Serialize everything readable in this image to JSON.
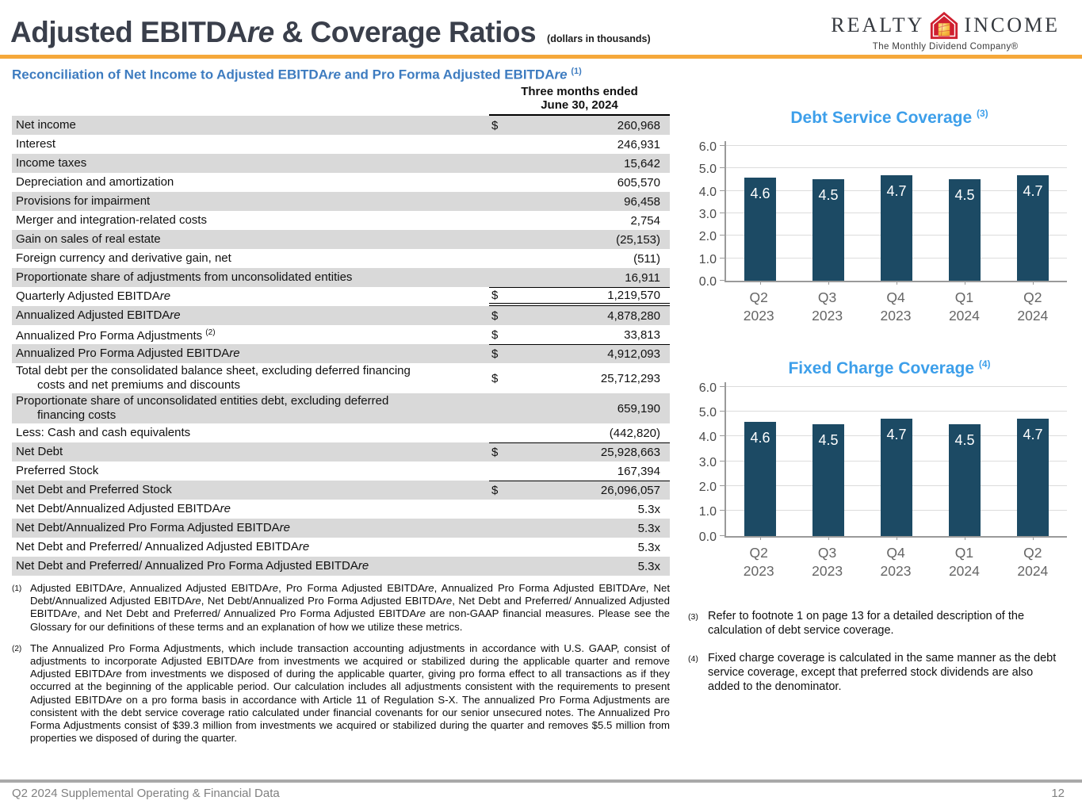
{
  "colors": {
    "accent_orange": "#f5a83a",
    "subtitle_blue": "#3e7cc0",
    "chart_title_blue": "#3d9fea",
    "bar_fill": "#1c4a64",
    "bar_value_label": "#ffffff",
    "row_shade": "#d9d9d9",
    "title_dark": "#3a3f4b",
    "footer_gray": "#808080",
    "logo_red": "#cf2030",
    "logo_window_yellow": "#f6c54a"
  },
  "header": {
    "title": "Adjusted EBITDAre & Coverage Ratios",
    "dollars_note": "(dollars in thousands)",
    "logo": {
      "left": "REALTY",
      "right": "INCOME",
      "tagline": "The Monthly Dividend Company®",
      "icon": "house-icon"
    }
  },
  "table": {
    "subtitle": "Reconciliation of Net Income to Adjusted EBITDAre and Pro Forma Adjusted EBITDAre",
    "subtitle_sup": "(1)",
    "period": [
      "Three months ended",
      "June 30, 2024"
    ],
    "rows": [
      {
        "label": "Net income",
        "dollar": "$",
        "value": "260,968",
        "shaded": true
      },
      {
        "label": "Interest",
        "dollar": "",
        "value": "246,931"
      },
      {
        "label": "Income taxes",
        "dollar": "",
        "value": "15,642",
        "shaded": true
      },
      {
        "label": "Depreciation and amortization",
        "dollar": "",
        "value": "605,570"
      },
      {
        "label": "Provisions for impairment",
        "dollar": "",
        "value": "96,458",
        "shaded": true
      },
      {
        "label": "Merger and integration-related costs",
        "dollar": "",
        "value": "2,754"
      },
      {
        "label": "Gain on sales of real estate",
        "dollar": "",
        "value": "(25,153)",
        "shaded": true
      },
      {
        "label": "Foreign currency and derivative gain, net",
        "dollar": "",
        "value": "(511)"
      },
      {
        "label": "Proportionate share of adjustments from unconsolidated entities",
        "dollar": "",
        "value": "16,911",
        "shaded": true
      },
      {
        "label": "Quarterly Adjusted EBITDAre",
        "dollar": "$",
        "value": "1,219,570",
        "top": true,
        "dbl": true
      },
      {
        "label": "Annualized Adjusted EBITDAre",
        "dollar": "$",
        "value": "4,878,280",
        "shaded": true
      },
      {
        "label": "Annualized Pro Forma Adjustments",
        "sup": "(2)",
        "dollar": "$",
        "value": "33,813"
      },
      {
        "label": "Annualized Pro Forma Adjusted EBITDAre",
        "dollar": "$",
        "value": "4,912,093",
        "shaded": true,
        "top": true
      },
      {
        "label": "Total debt per the consolidated balance sheet, excluding deferred financing",
        "label2": "costs and net premiums and discounts",
        "dollar": "$",
        "value": "25,712,293"
      },
      {
        "label": "Proportionate share of unconsolidated entities debt, excluding deferred",
        "label2": "financing costs",
        "dollar": "",
        "value": "659,190",
        "shaded": true
      },
      {
        "label": "Less: Cash and cash equivalents",
        "dollar": "",
        "value": "(442,820)"
      },
      {
        "label": "Net Debt",
        "dollar": "$",
        "value": "25,928,663",
        "shaded": true,
        "top": true
      },
      {
        "label": "Preferred Stock",
        "dollar": "",
        "value": "167,394"
      },
      {
        "label": "Net Debt and Preferred Stock",
        "dollar": "$",
        "value": "26,096,057",
        "shaded": true,
        "top": true
      },
      {
        "label": "Net Debt/Annualized Adjusted EBITDAre",
        "dollar": "",
        "value": "5.3x"
      },
      {
        "label": "Net Debt/Annualized Pro Forma Adjusted EBITDAre",
        "dollar": "",
        "value": "5.3x",
        "shaded": true
      },
      {
        "label": "Net Debt and Preferred/ Annualized Adjusted EBITDAre",
        "dollar": "",
        "value": "5.3x"
      },
      {
        "label": "Net Debt and Preferred/ Annualized Pro Forma Adjusted EBITDAre",
        "dollar": "",
        "value": "5.3x",
        "shaded": true
      }
    ]
  },
  "footnotes_left": [
    {
      "marker": "(1)",
      "text": "Adjusted EBITDAre, Annualized Adjusted EBITDAre, Pro Forma Adjusted EBITDAre, Annualized Pro Forma Adjusted EBITDAre, Net Debt/Annualized Adjusted EBITDAre, Net Debt/Annualized Pro Forma Adjusted EBITDAre, Net Debt and Preferred/ Annualized Adjusted EBITDAre, and Net Debt and Preferred/ Annualized Pro Forma Adjusted EBITDAre are non-GAAP financial measures. Please see the Glossary for our definitions of these terms and an explanation of how we utilize these metrics."
    },
    {
      "marker": "(2)",
      "text": "The Annualized Pro Forma Adjustments, which include transaction accounting adjustments in accordance with U.S. GAAP, consist of adjustments to incorporate Adjusted EBITDAre from investments we acquired or stabilized during the applicable quarter and remove Adjusted EBITDAre from investments we disposed of during the applicable quarter, giving pro forma effect to all transactions as if they occurred at the beginning of the applicable period. Our calculation includes all adjustments consistent with the requirements to present Adjusted EBITDAre on a pro forma basis in accordance with Article 11 of Regulation S-X. The annualized Pro Forma Adjustments are consistent with the debt service coverage ratio calculated under financial covenants for our senior unsecured notes. The Annualized Pro Forma Adjustments consist of $39.3 million from investments we acquired or stabilized during the quarter and removes $5.5 million from properties we disposed of during the quarter."
    }
  ],
  "footnotes_right": [
    {
      "marker": "(3)",
      "text": "Refer to footnote 1 on page 13 for a detailed description of the calculation of debt service coverage."
    },
    {
      "marker": "(4)",
      "text": "Fixed charge coverage is calculated in the same manner as the debt service coverage, except that preferred stock dividends are also added to the denominator."
    }
  ],
  "chart_data": [
    {
      "type": "bar",
      "title": "Debt Service Coverage",
      "title_sup": "(3)",
      "categories": [
        "Q2 2023",
        "Q3 2023",
        "Q4 2023",
        "Q1 2024",
        "Q2 2024"
      ],
      "values": [
        4.6,
        4.5,
        4.7,
        4.5,
        4.7
      ],
      "value_labels": [
        "4.6",
        "4.5",
        "4.7",
        "4.5",
        "4.7"
      ],
      "ylim": [
        0,
        6
      ],
      "ytick_step": 1.0,
      "ytick_labels": [
        "0.0",
        "1.0",
        "2.0",
        "3.0",
        "4.0",
        "5.0",
        "6.0"
      ],
      "grid": true,
      "legend": false,
      "bar_color": "#1c4a64",
      "value_label_color": "#ffffff"
    },
    {
      "type": "bar",
      "title": "Fixed Charge Coverage",
      "title_sup": "(4)",
      "categories": [
        "Q2 2023",
        "Q3 2023",
        "Q4 2023",
        "Q1 2024",
        "Q2 2024"
      ],
      "values": [
        4.6,
        4.5,
        4.7,
        4.5,
        4.7
      ],
      "value_labels": [
        "4.6",
        "4.5",
        "4.7",
        "4.5",
        "4.7"
      ],
      "ylim": [
        0,
        6
      ],
      "ytick_step": 1.0,
      "ytick_labels": [
        "0.0",
        "1.0",
        "2.0",
        "3.0",
        "4.0",
        "5.0",
        "6.0"
      ],
      "grid": true,
      "legend": false,
      "bar_color": "#1c4a64",
      "value_label_color": "#ffffff"
    }
  ],
  "footer": {
    "left": "Q2 2024 Supplemental Operating & Financial Data",
    "page": "12"
  }
}
